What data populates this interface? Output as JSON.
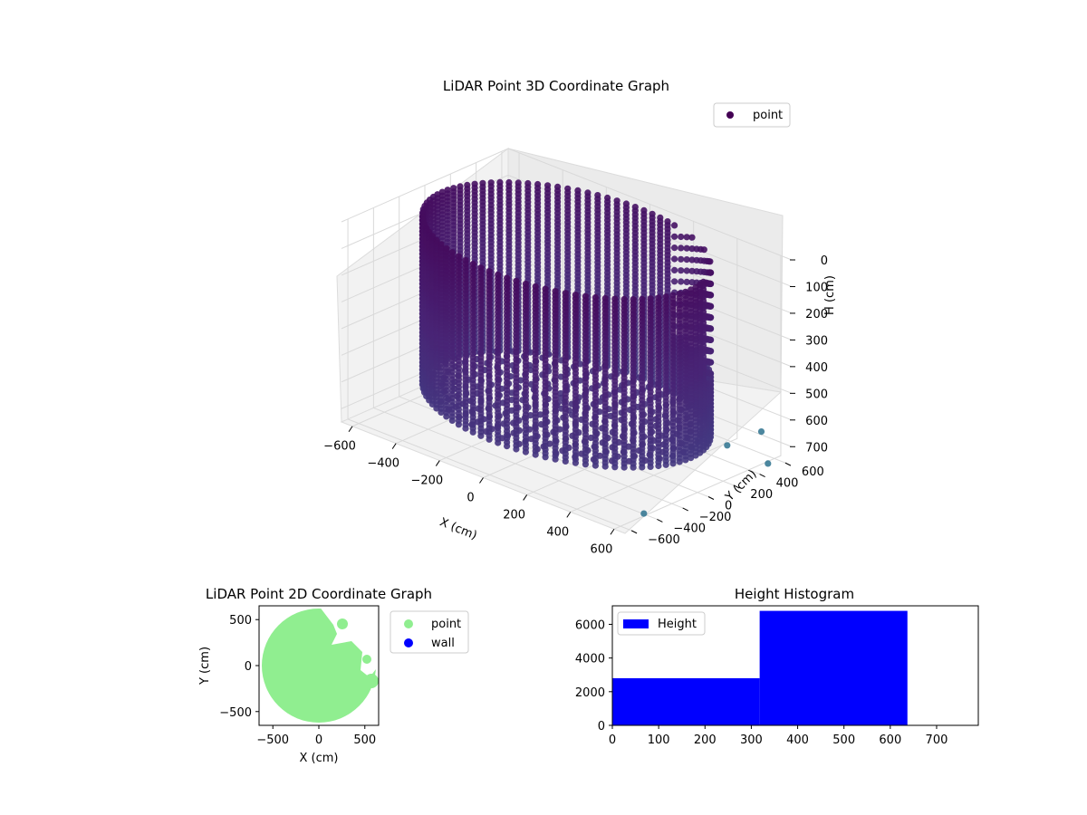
{
  "chart_data": [
    {
      "type": "scatter3d",
      "title": "LiDAR Point 3D Coordinate Graph",
      "xlabel": "X (cm)",
      "ylabel": "Y (cm)",
      "zlabel": "H (cm)",
      "xticks": [
        "−600",
        "−400",
        "−200",
        "0",
        "200",
        "400",
        "600"
      ],
      "yticks": [
        "−600",
        "−400",
        "−200",
        "0",
        "200",
        "400",
        "600"
      ],
      "zticks": [
        "0",
        "100",
        "200",
        "300",
        "400",
        "500",
        "600",
        "700"
      ],
      "xlim": [
        -650,
        650
      ],
      "ylim": [
        -650,
        650
      ],
      "zlim": [
        0,
        750
      ],
      "z_inverted": true,
      "colormap": "viridis",
      "legend": {
        "placement": "upper-right",
        "entries": [
          {
            "name": "point",
            "color": "#440154"
          }
        ]
      },
      "description_values": {
        "cylinder_radius": 570,
        "height_range": [
          0,
          640
        ]
      },
      "outliers": [
        {
          "x": 640,
          "y": 430,
          "h": 600
        },
        {
          "x": 700,
          "y": 380,
          "h": 690
        },
        {
          "x": 660,
          "y": -520,
          "h": 700
        },
        {
          "x": 560,
          "y": 300,
          "h": 650
        }
      ]
    },
    {
      "type": "scatter",
      "title": "LiDAR Point 2D Coordinate Graph",
      "xlabel": "X (cm)",
      "ylabel": "Y (cm)",
      "xticks": [
        "−500",
        "0",
        "500"
      ],
      "yticks": [
        "−500",
        "0",
        "500"
      ],
      "xlim": [
        -650,
        650
      ],
      "ylim": [
        -650,
        650
      ],
      "series": [
        {
          "name": "point",
          "color": "#90ee90",
          "shape": "disk",
          "radius": 620
        },
        {
          "name": "wall",
          "color": "#0000ff"
        }
      ],
      "legend": {
        "placement": "outside-right"
      }
    },
    {
      "type": "bar",
      "title": "Height Histogram",
      "legend_label": "Height",
      "color": "#0000ff",
      "xticks": [
        "0",
        "100",
        "200",
        "300",
        "400",
        "500",
        "600",
        "700"
      ],
      "yticks": [
        "0",
        "2000",
        "4000",
        "6000"
      ],
      "xlim": [
        0,
        790
      ],
      "ylim": [
        0,
        7100
      ],
      "bins": [
        {
          "start": 0,
          "end": 318,
          "count": 2800
        },
        {
          "start": 318,
          "end": 637,
          "count": 6800
        }
      ],
      "legend": {
        "placement": "upper-left"
      }
    }
  ]
}
